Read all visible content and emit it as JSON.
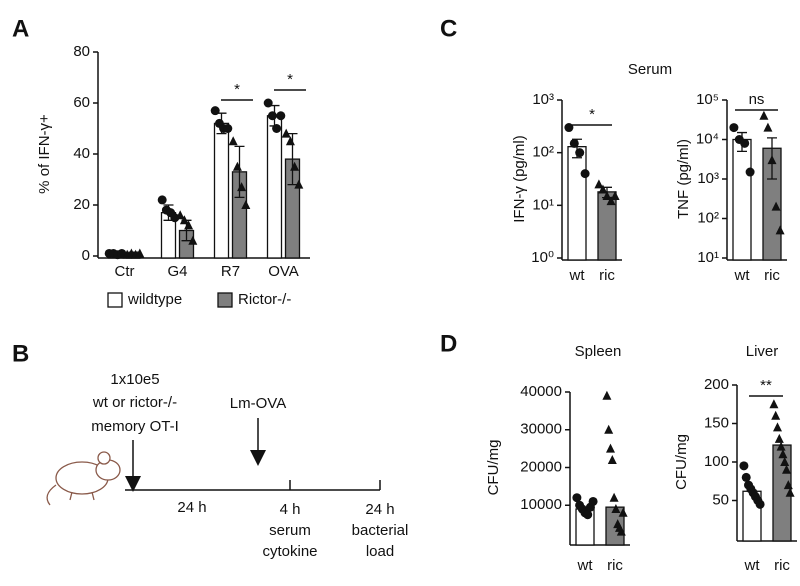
{
  "panel_labels": [
    "A",
    "B",
    "C",
    "D"
  ],
  "panel_c_title": "Serum",
  "timeline": {
    "dose": "1x10e5",
    "cells": "wt or rictor-/-",
    "cell_type": "memory OT-I",
    "infection": "Lm-OVA",
    "interval": "24 h",
    "readout_1_time": "4 h",
    "readout_1_line_1": "serum",
    "readout_1_line_2": "cytokine",
    "readout_2_time": "24 h",
    "readout_2_line_1": "bacterial",
    "readout_2_line_2": "load"
  },
  "chart_data": [
    {
      "type": "bar",
      "y_label": "% of IFN-γ+",
      "categories": [
        "Ctr",
        "G4",
        "R7",
        "OVA"
      ],
      "series": [
        {
          "name": "wildtype",
          "color": "#ffffff",
          "marker": "circle",
          "values": [
            1,
            17,
            52,
            55
          ],
          "errors": [
            0.5,
            3,
            4,
            4
          ],
          "points": [
            [
              1,
              1,
              0.5,
              1
            ],
            [
              22,
              18,
              17,
              15
            ],
            [
              57,
              52,
              50,
              50
            ],
            [
              60,
              55,
              50,
              55
            ]
          ]
        },
        {
          "name": "Rictor-/-",
          "color": "#7f7f7f",
          "marker": "triangle",
          "values": [
            1,
            10,
            33,
            38
          ],
          "errors": [
            0.5,
            4,
            10,
            10
          ],
          "points": [
            [
              0.5,
              1,
              0.5,
              1
            ],
            [
              16,
              14,
              12,
              6
            ],
            [
              45,
              35,
              27,
              20
            ],
            [
              48,
              45,
              35,
              28
            ]
          ]
        }
      ],
      "ylim": [
        0,
        80
      ],
      "yticks": [
        0,
        20,
        40,
        60,
        80
      ],
      "annotations": [
        "*",
        "*"
      ]
    },
    {
      "type": "bar",
      "y_label": "IFN-γ (pg/ml)",
      "categories": [
        "wt",
        "ric"
      ],
      "log_scale": true,
      "values": [
        130,
        18
      ],
      "errors": [
        50,
        4
      ],
      "colors": [
        "#ffffff",
        "#7f7f7f"
      ],
      "markers": [
        "circle",
        "triangle"
      ],
      "points": [
        [
          300,
          150,
          100,
          40
        ],
        [
          25,
          20,
          15,
          12,
          15
        ]
      ],
      "ylim": [
        1,
        1000
      ],
      "yticks": [
        {
          "value": 1,
          "label": "10⁰"
        },
        {
          "value": 10,
          "label": "10¹"
        },
        {
          "value": 100,
          "label": "10²"
        },
        {
          "value": 1000,
          "label": "10³"
        }
      ],
      "annotations": [
        "*"
      ]
    },
    {
      "type": "bar",
      "y_label": "TNF (pg/ml)",
      "categories": [
        "wt",
        "ric"
      ],
      "log_scale": true,
      "values": [
        10000,
        6000
      ],
      "errors": [
        5000,
        5000
      ],
      "colors": [
        "#ffffff",
        "#7f7f7f"
      ],
      "markers": [
        "circle",
        "triangle"
      ],
      "points": [
        [
          20000,
          10000,
          8000,
          1500
        ],
        [
          40000,
          20000,
          3000,
          200,
          50
        ]
      ],
      "ylim": [
        10,
        100000
      ],
      "yticks": [
        {
          "value": 10,
          "label": "10¹"
        },
        {
          "value": 100,
          "label": "10²"
        },
        {
          "value": 1000,
          "label": "10³"
        },
        {
          "value": 10000,
          "label": "10⁴"
        },
        {
          "value": 100000,
          "label": "10⁵"
        }
      ],
      "annotations": [
        "ns"
      ]
    },
    {
      "type": "bar",
      "title": "Spleen",
      "y_label": "CFU/mg",
      "categories": [
        "wt",
        "ric"
      ],
      "values": [
        9000,
        9500
      ],
      "colors": [
        "#ffffff",
        "#7f7f7f"
      ],
      "markers": [
        "circle",
        "triangle"
      ],
      "points": [
        [
          12000,
          10000,
          9000,
          8000,
          7500,
          9500,
          11000
        ],
        [
          39000,
          30000,
          25000,
          22000,
          12000,
          9000,
          5000,
          4000,
          3000,
          8000
        ]
      ],
      "ylim": [
        0,
        40000
      ],
      "yticks": [
        10000,
        20000,
        30000,
        40000
      ],
      "annotations": []
    },
    {
      "type": "bar",
      "title": "Liver",
      "y_label": "CFU/mg",
      "categories": [
        "wt",
        "ric"
      ],
      "values": [
        62,
        122
      ],
      "colors": [
        "#ffffff",
        "#7f7f7f"
      ],
      "markers": [
        "circle",
        "triangle"
      ],
      "points": [
        [
          95,
          80,
          70,
          65,
          60,
          55,
          50,
          45
        ],
        [
          175,
          160,
          145,
          130,
          120,
          110,
          100,
          90,
          70,
          60
        ]
      ],
      "ylim": [
        0,
        200
      ],
      "yticks": [
        50,
        100,
        150,
        200
      ],
      "annotations": [
        "**"
      ]
    }
  ]
}
